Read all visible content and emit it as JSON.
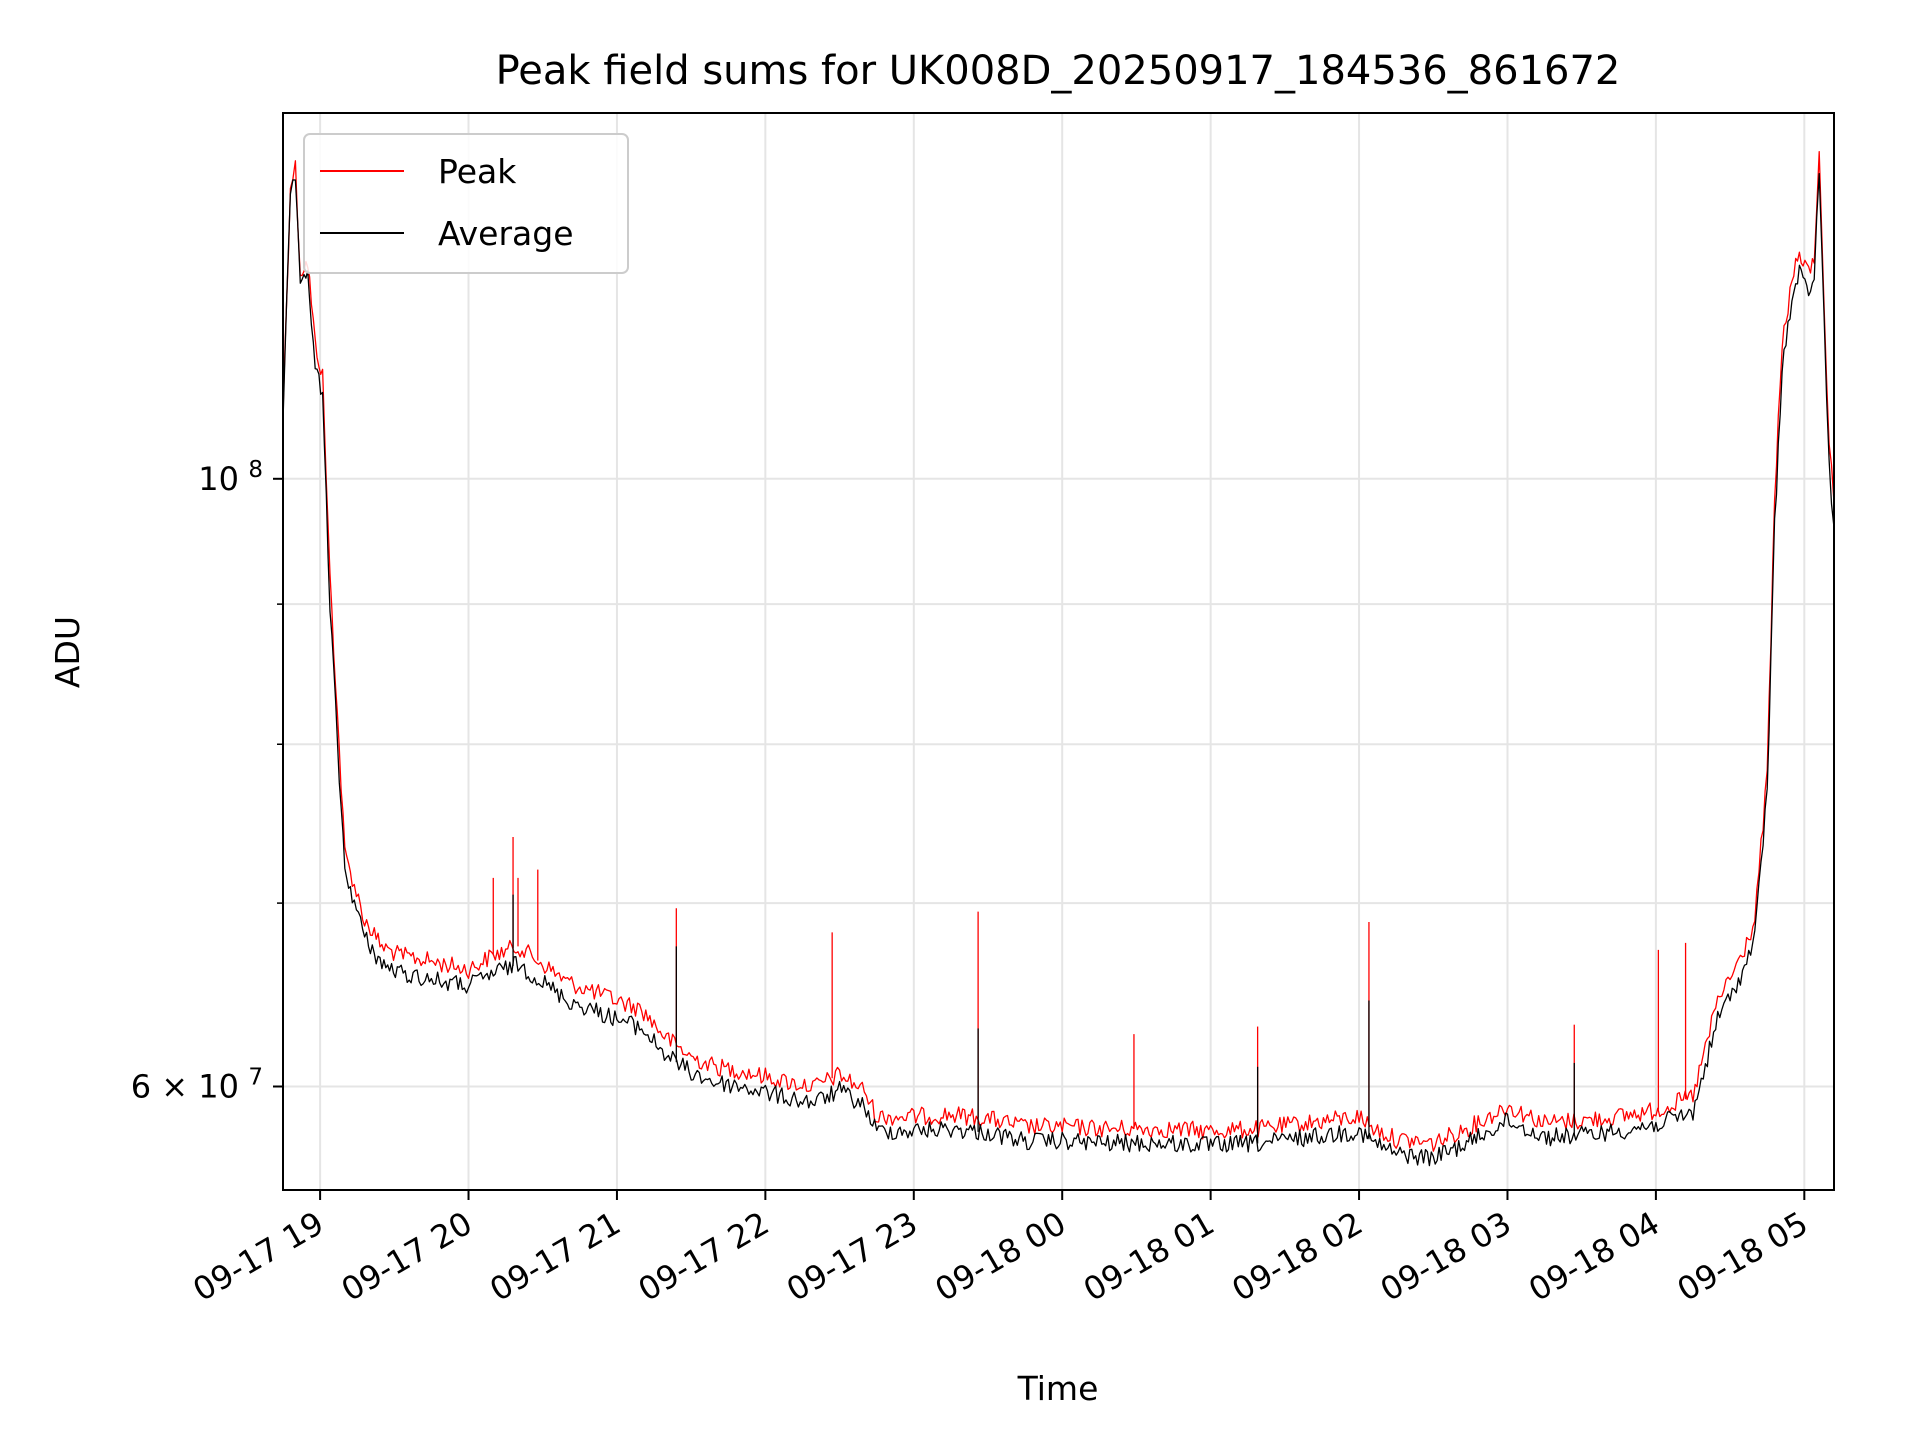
{
  "chart_data": {
    "type": "line",
    "title": "Peak field sums for UK008D_20250917_184536_861672",
    "xlabel": "Time",
    "ylabel": "ADU",
    "yscale": "log",
    "x_range": [
      "2025-09-17 18:45",
      "2025-09-18 05:12"
    ],
    "y_range": [
      55000000,
      136000000
    ],
    "x_ticks": [
      "09-17 19",
      "09-17 20",
      "09-17 21",
      "09-17 22",
      "09-17 23",
      "09-18 00",
      "09-18 01",
      "09-18 02",
      "09-18 03",
      "09-18 04",
      "09-18 05"
    ],
    "y_tick_labels": [
      {
        "value": 100000000,
        "label": "10",
        "exp": "8"
      },
      {
        "value": 60000000,
        "label": "6 × 10",
        "exp": "7"
      }
    ],
    "y_minor_ticks": [
      70000000,
      80000000,
      90000000
    ],
    "grid": true,
    "legend": "upper left",
    "series": [
      {
        "name": "Peak",
        "color": "#ff0000",
        "points": [
          [
            "2025-09-17 18:45",
            106000000
          ],
          [
            "2025-09-17 18:48",
            128000000
          ],
          [
            "2025-09-17 18:50",
            130000000
          ],
          [
            "2025-09-17 18:52",
            119000000
          ],
          [
            "2025-09-17 18:55",
            120000000
          ],
          [
            "2025-09-17 18:58",
            112000000
          ],
          [
            "2025-09-17 19:01",
            109000000
          ],
          [
            "2025-09-17 19:04",
            92000000
          ],
          [
            "2025-09-17 19:07",
            82000000
          ],
          [
            "2025-09-17 19:10",
            73000000
          ],
          [
            "2025-09-17 19:13",
            71500000
          ],
          [
            "2025-09-17 19:18",
            69000000
          ],
          [
            "2025-09-17 19:25",
            67500000
          ],
          [
            "2025-09-17 19:32",
            67000000
          ],
          [
            "2025-09-17 19:40",
            66800000
          ],
          [
            "2025-09-17 19:50",
            66500000
          ],
          [
            "2025-09-17 20:00",
            66200000
          ],
          [
            "2025-09-17 20:10",
            67000000
          ],
          [
            "2025-09-17 20:20",
            67500000
          ],
          [
            "2025-09-17 20:30",
            66500000
          ],
          [
            "2025-09-17 20:40",
            65500000
          ],
          [
            "2025-09-17 20:50",
            65000000
          ],
          [
            "2025-09-17 21:00",
            64500000
          ],
          [
            "2025-09-17 21:10",
            64000000
          ],
          [
            "2025-09-17 21:20",
            62500000
          ],
          [
            "2025-09-17 21:30",
            61500000
          ],
          [
            "2025-09-17 21:40",
            61000000
          ],
          [
            "2025-09-17 21:50",
            60800000
          ],
          [
            "2025-09-17 22:00",
            60500000
          ],
          [
            "2025-09-17 22:10",
            60200000
          ],
          [
            "2025-09-17 22:20",
            60000000
          ],
          [
            "2025-09-17 22:30",
            60600000
          ],
          [
            "2025-09-17 22:40",
            59800000
          ],
          [
            "2025-09-17 22:45",
            58500000
          ],
          [
            "2025-09-17 23:00",
            58500000
          ],
          [
            "2025-09-17 23:15",
            58600000
          ],
          [
            "2025-09-17 23:30",
            58400000
          ],
          [
            "2025-09-17 23:45",
            58000000
          ],
          [
            "2025-09-18 00:00",
            58000000
          ],
          [
            "2025-09-18 00:20",
            57900000
          ],
          [
            "2025-09-18 00:40",
            57900000
          ],
          [
            "2025-09-18 01:00",
            57800000
          ],
          [
            "2025-09-18 01:20",
            57900000
          ],
          [
            "2025-09-18 01:40",
            58200000
          ],
          [
            "2025-09-18 02:00",
            58500000
          ],
          [
            "2025-09-18 02:05",
            58000000
          ],
          [
            "2025-09-18 02:15",
            57400000
          ],
          [
            "2025-09-18 02:30",
            57200000
          ],
          [
            "2025-09-18 02:45",
            58000000
          ],
          [
            "2025-09-18 03:00",
            59000000
          ],
          [
            "2025-09-18 03:15",
            58200000
          ],
          [
            "2025-09-18 03:30",
            58300000
          ],
          [
            "2025-09-18 03:45",
            58500000
          ],
          [
            "2025-09-18 04:00",
            58800000
          ],
          [
            "2025-09-18 04:15",
            59500000
          ],
          [
            "2025-09-18 04:25",
            64500000
          ],
          [
            "2025-09-18 04:35",
            67000000
          ],
          [
            "2025-09-18 04:40",
            69000000
          ],
          [
            "2025-09-18 04:45",
            78000000
          ],
          [
            "2025-09-18 04:48",
            98000000
          ],
          [
            "2025-09-18 04:51",
            112000000
          ],
          [
            "2025-09-18 04:55",
            118000000
          ],
          [
            "2025-09-18 04:58",
            121000000
          ],
          [
            "2025-09-18 05:01",
            119000000
          ],
          [
            "2025-09-18 05:04",
            120000000
          ],
          [
            "2025-09-18 05:06",
            132000000
          ],
          [
            "2025-09-18 05:08",
            116000000
          ],
          [
            "2025-09-18 05:10",
            103000000
          ],
          [
            "2025-09-18 05:12",
            98000000
          ]
        ],
        "spikes": [
          [
            "2025-09-17 20:18",
            74000000
          ],
          [
            "2025-09-17 20:10",
            71500000
          ],
          [
            "2025-09-17 20:20",
            71500000
          ],
          [
            "2025-09-17 20:28",
            72000000
          ],
          [
            "2025-09-17 21:24",
            69700000
          ],
          [
            "2025-09-17 22:27",
            68300000
          ],
          [
            "2025-09-17 23:26",
            69500000
          ],
          [
            "2025-09-18 00:29",
            62700000
          ],
          [
            "2025-09-18 01:19",
            63100000
          ],
          [
            "2025-09-18 02:04",
            68900000
          ],
          [
            "2025-09-18 03:27",
            63200000
          ],
          [
            "2025-09-18 04:01",
            67300000
          ],
          [
            "2025-09-18 04:12",
            67700000
          ]
        ]
      },
      {
        "name": "Average",
        "color": "#000000",
        "points": [
          [
            "2025-09-17 18:45",
            105000000
          ],
          [
            "2025-09-17 18:48",
            127000000
          ],
          [
            "2025-09-17 18:50",
            129000000
          ],
          [
            "2025-09-17 18:52",
            117000000
          ],
          [
            "2025-09-17 18:55",
            119000000
          ],
          [
            "2025-09-17 18:58",
            110000000
          ],
          [
            "2025-09-17 19:01",
            107000000
          ],
          [
            "2025-09-17 19:04",
            90000000
          ],
          [
            "2025-09-17 19:07",
            80000000
          ],
          [
            "2025-09-17 19:10",
            72000000
          ],
          [
            "2025-09-17 19:13",
            70500000
          ],
          [
            "2025-09-17 19:18",
            68000000
          ],
          [
            "2025-09-17 19:25",
            66500000
          ],
          [
            "2025-09-17 19:32",
            66000000
          ],
          [
            "2025-09-17 19:40",
            65800000
          ],
          [
            "2025-09-17 19:50",
            65500000
          ],
          [
            "2025-09-17 20:00",
            65300000
          ],
          [
            "2025-09-17 20:10",
            66000000
          ],
          [
            "2025-09-17 20:20",
            66500000
          ],
          [
            "2025-09-17 20:30",
            65500000
          ],
          [
            "2025-09-17 20:40",
            64500000
          ],
          [
            "2025-09-17 20:50",
            64000000
          ],
          [
            "2025-09-17 21:00",
            63500000
          ],
          [
            "2025-09-17 21:10",
            63000000
          ],
          [
            "2025-09-17 21:20",
            61600000
          ],
          [
            "2025-09-17 21:30",
            60700000
          ],
          [
            "2025-09-17 21:40",
            60200000
          ],
          [
            "2025-09-17 21:50",
            60000000
          ],
          [
            "2025-09-17 22:00",
            59700000
          ],
          [
            "2025-09-17 22:10",
            59400000
          ],
          [
            "2025-09-17 22:20",
            59200000
          ],
          [
            "2025-09-17 22:30",
            59800000
          ],
          [
            "2025-09-17 22:40",
            59000000
          ],
          [
            "2025-09-17 22:45",
            57800000
          ],
          [
            "2025-09-17 23:00",
            57800000
          ],
          [
            "2025-09-17 23:15",
            57900000
          ],
          [
            "2025-09-17 23:30",
            57700000
          ],
          [
            "2025-09-17 23:45",
            57300000
          ],
          [
            "2025-09-18 00:00",
            57300000
          ],
          [
            "2025-09-18 00:20",
            57200000
          ],
          [
            "2025-09-18 00:40",
            57200000
          ],
          [
            "2025-09-18 01:00",
            57100000
          ],
          [
            "2025-09-18 01:20",
            57200000
          ],
          [
            "2025-09-18 01:40",
            57500000
          ],
          [
            "2025-09-18 02:00",
            57800000
          ],
          [
            "2025-09-18 02:05",
            57300000
          ],
          [
            "2025-09-18 02:15",
            56700000
          ],
          [
            "2025-09-18 02:30",
            56500000
          ],
          [
            "2025-09-18 02:45",
            57300000
          ],
          [
            "2025-09-18 03:00",
            58300000
          ],
          [
            "2025-09-18 03:15",
            57500000
          ],
          [
            "2025-09-18 03:30",
            57600000
          ],
          [
            "2025-09-18 03:45",
            57800000
          ],
          [
            "2025-09-18 04:00",
            58100000
          ],
          [
            "2025-09-18 04:15",
            58700000
          ],
          [
            "2025-09-18 04:25",
            63500000
          ],
          [
            "2025-09-18 04:35",
            66000000
          ],
          [
            "2025-09-18 04:40",
            68000000
          ],
          [
            "2025-09-18 04:45",
            77000000
          ],
          [
            "2025-09-18 04:48",
            96000000
          ],
          [
            "2025-09-18 04:51",
            110000000
          ],
          [
            "2025-09-18 04:55",
            116000000
          ],
          [
            "2025-09-18 04:58",
            119000000
          ],
          [
            "2025-09-18 05:01",
            117000000
          ],
          [
            "2025-09-18 05:04",
            118000000
          ],
          [
            "2025-09-18 05:06",
            130000000
          ],
          [
            "2025-09-18 05:08",
            114000000
          ],
          [
            "2025-09-18 05:10",
            101000000
          ],
          [
            "2025-09-18 05:12",
            96000000
          ]
        ],
        "spikes": [
          [
            "2025-09-17 20:18",
            70500000
          ],
          [
            "2025-09-17 21:24",
            67500000
          ],
          [
            "2025-09-17 23:26",
            63000000
          ],
          [
            "2025-09-18 02:04",
            64500000
          ],
          [
            "2025-09-18 01:19",
            61000000
          ],
          [
            "2025-09-18 03:27",
            61200000
          ]
        ]
      }
    ]
  }
}
